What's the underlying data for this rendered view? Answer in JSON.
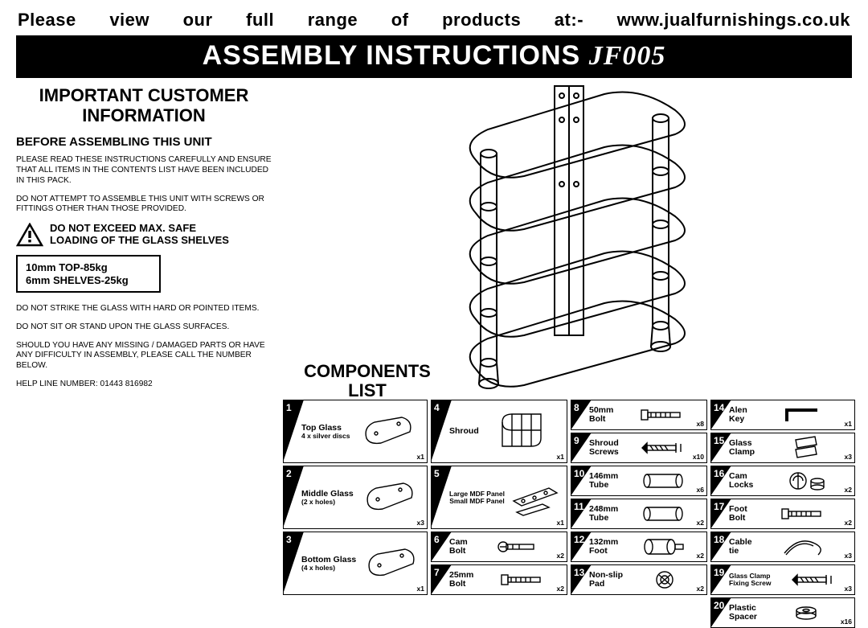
{
  "top_banner": "Please view our full range of products at:- www.jualfurnishings.co.uk",
  "title_main": "ASSEMBLY INSTRUCTIONS",
  "title_model": "JF005",
  "customer_info_heading_l1": "IMPORTANT CUSTOMER",
  "customer_info_heading_l2": "INFORMATION",
  "before_heading": "BEFORE ASSEMBLING THIS UNIT",
  "para1": "PLEASE READ THESE INSTRUCTIONS CAREFULLY AND ENSURE THAT ALL ITEMS IN THE CONTENTS LIST HAVE BEEN INCLUDED IN THIS PACK.",
  "para2": "DO NOT ATTEMPT TO ASSEMBLE THIS UNIT WITH SCREWS OR FITTINGS OTHER THAN THOSE PROVIDED.",
  "warning_l1": "DO NOT EXCEED MAX. SAFE",
  "warning_l2": "LOADING OF THE GLASS SHELVES",
  "spec_l1": "10mm TOP-85kg",
  "spec_l2": "6mm SHELVES-25kg",
  "para3": "DO NOT STRIKE THE GLASS WITH HARD OR POINTED ITEMS.",
  "para4": "DO NOT SIT OR STAND UPON THE GLASS SURFACES.",
  "para5": "SHOULD YOU HAVE ANY MISSING / DAMAGED PARTS OR HAVE ANY DIFFICULTY IN ASSEMBLY, PLEASE CALL THE NUMBER BELOW.",
  "helpline": "HELP LINE NUMBER: 01443 816982",
  "components_heading_l1": "COMPONENTS",
  "components_heading_l2": "LIST",
  "components": [
    {
      "n": "1",
      "label": "Top Glass",
      "sub": "4 x silver discs",
      "qty": "x1",
      "col": 1,
      "row": 1,
      "tall": true,
      "icon": "glass"
    },
    {
      "n": "2",
      "label": "Middle Glass",
      "sub": "(2 x holes)",
      "qty": "x3",
      "col": 1,
      "row": 3,
      "tall": true,
      "icon": "glass"
    },
    {
      "n": "3",
      "label": "Bottom Glass",
      "sub": "(4 x holes)",
      "qty": "x1",
      "col": 1,
      "row": 5,
      "tall": true,
      "icon": "glass"
    },
    {
      "n": "4",
      "label": "Shroud",
      "sub": "",
      "qty": "x1",
      "col": 2,
      "row": 1,
      "tall": true,
      "icon": "shroud"
    },
    {
      "n": "5",
      "label": "Large MDF Panel",
      "sub": "Small MDF Panel",
      "qty": "x1",
      "col": 2,
      "row": 3,
      "tall": true,
      "icon": "panel"
    },
    {
      "n": "6",
      "label": "Cam\nBolt",
      "sub": "",
      "qty": "x2",
      "col": 2,
      "row": 5,
      "tall": false,
      "icon": "cambolt"
    },
    {
      "n": "7",
      "label": "25mm\nBolt",
      "sub": "",
      "qty": "x2",
      "col": 2,
      "row": 6,
      "tall": false,
      "icon": "bolt"
    },
    {
      "n": "8",
      "label": "50mm\nBolt",
      "sub": "",
      "qty": "x8",
      "col": 3,
      "row": 1,
      "tall": false,
      "icon": "bolt"
    },
    {
      "n": "9",
      "label": "Shroud\nScrews",
      "sub": "",
      "qty": "x10",
      "col": 3,
      "row": 2,
      "tall": false,
      "icon": "screw"
    },
    {
      "n": "10",
      "label": "146mm\nTube",
      "sub": "",
      "qty": "x6",
      "col": 3,
      "row": 3,
      "tall": false,
      "icon": "tube"
    },
    {
      "n": "11",
      "label": "248mm\nTube",
      "sub": "",
      "qty": "x2",
      "col": 3,
      "row": 4,
      "tall": false,
      "icon": "tube"
    },
    {
      "n": "12",
      "label": "132mm\nFoot",
      "sub": "",
      "qty": "x2",
      "col": 3,
      "row": 5,
      "tall": false,
      "icon": "foot"
    },
    {
      "n": "13",
      "label": "Non-slip\nPad",
      "sub": "",
      "qty": "x2",
      "col": 3,
      "row": 6,
      "tall": false,
      "icon": "pad"
    },
    {
      "n": "14",
      "label": "Alen\nKey",
      "sub": "",
      "qty": "x1",
      "col": 4,
      "row": 1,
      "tall": false,
      "icon": "hexkey"
    },
    {
      "n": "15",
      "label": "Glass\nClamp",
      "sub": "",
      "qty": "x3",
      "col": 4,
      "row": 2,
      "tall": false,
      "icon": "clamp"
    },
    {
      "n": "16",
      "label": "Cam\nLocks",
      "sub": "",
      "qty": "x2",
      "col": 4,
      "row": 3,
      "tall": false,
      "icon": "camlock"
    },
    {
      "n": "17",
      "label": "Foot\nBolt",
      "sub": "",
      "qty": "x2",
      "col": 4,
      "row": 4,
      "tall": false,
      "icon": "bolt"
    },
    {
      "n": "18",
      "label": "Cable\ntie",
      "sub": "",
      "qty": "x3",
      "col": 4,
      "row": 5,
      "tall": false,
      "icon": "cable"
    },
    {
      "n": "19",
      "label": "Glass Clamp\nFixing Screw",
      "sub": "",
      "qty": "x3",
      "col": 4,
      "row": 6,
      "tall": false,
      "icon": "screw"
    },
    {
      "n": "20",
      "label": "Plastic\nSpacer",
      "sub": "",
      "qty": "x16",
      "col": 4,
      "row": 7,
      "tall": false,
      "icon": "spacer"
    }
  ],
  "grid": {
    "row7_only_col4": true
  }
}
